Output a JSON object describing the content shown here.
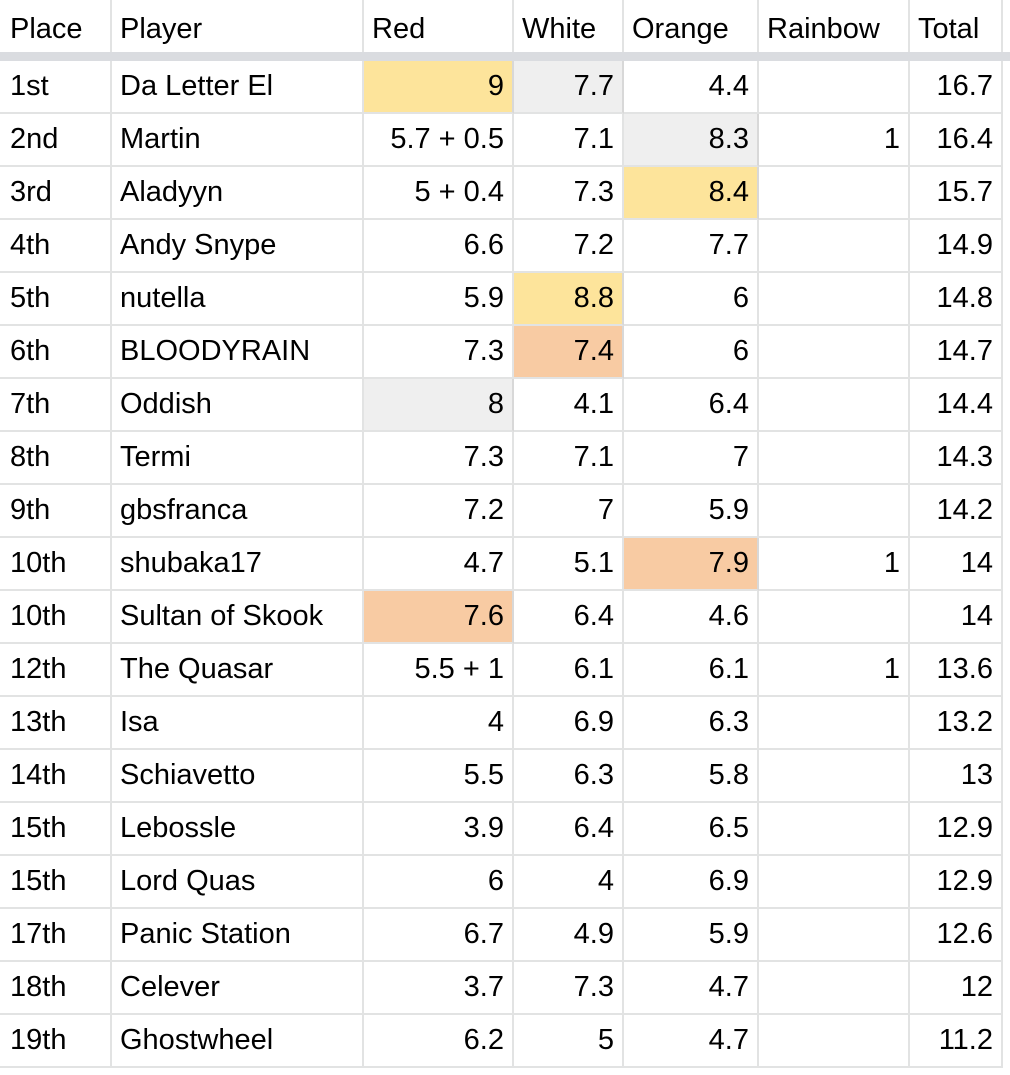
{
  "headers": {
    "place": "Place",
    "player": "Player",
    "red": "Red",
    "white": "White",
    "orange": "Orange",
    "rainbow": "Rainbow",
    "total": "Total"
  },
  "highlight_colors": {
    "gold": "#fde49b",
    "silver": "#efefef",
    "bronze": "#f8cba3"
  },
  "rows": [
    {
      "place": "1st",
      "player": "Da Letter El",
      "red": "9",
      "white": "7.7",
      "orange": "4.4",
      "rainbow": "",
      "total": "16.7"
    },
    {
      "place": "2nd",
      "player": "Martin",
      "red": "5.7 + 0.5",
      "white": "7.1",
      "orange": "8.3",
      "rainbow": "1",
      "total": "16.4"
    },
    {
      "place": "3rd",
      "player": "Aladyyn",
      "red": "5 + 0.4",
      "white": "7.3",
      "orange": "8.4",
      "rainbow": "",
      "total": "15.7"
    },
    {
      "place": "4th",
      "player": "Andy Snype",
      "red": "6.6",
      "white": "7.2",
      "orange": "7.7",
      "rainbow": "",
      "total": "14.9"
    },
    {
      "place": "5th",
      "player": "nutella",
      "red": "5.9",
      "white": "8.8",
      "orange": "6",
      "rainbow": "",
      "total": "14.8"
    },
    {
      "place": "6th",
      "player": "BLOODYRAIN",
      "red": "7.3",
      "white": "7.4",
      "orange": "6",
      "rainbow": "",
      "total": "14.7"
    },
    {
      "place": "7th",
      "player": "Oddish",
      "red": "8",
      "white": "4.1",
      "orange": "6.4",
      "rainbow": "",
      "total": "14.4"
    },
    {
      "place": "8th",
      "player": "Termi",
      "red": "7.3",
      "white": "7.1",
      "orange": "7",
      "rainbow": "",
      "total": "14.3"
    },
    {
      "place": "9th",
      "player": "gbsfranca",
      "red": "7.2",
      "white": "7",
      "orange": "5.9",
      "rainbow": "",
      "total": "14.2"
    },
    {
      "place": "10th",
      "player": "shubaka17",
      "red": "4.7",
      "white": "5.1",
      "orange": "7.9",
      "rainbow": "1",
      "total": "14"
    },
    {
      "place": "10th",
      "player": "Sultan of Skook",
      "red": "7.6",
      "white": "6.4",
      "orange": "4.6",
      "rainbow": "",
      "total": "14"
    },
    {
      "place": "12th",
      "player": "The Quasar",
      "red": "5.5 + 1",
      "white": "6.1",
      "orange": "6.1",
      "rainbow": "1",
      "total": "13.6"
    },
    {
      "place": "13th",
      "player": "Isa",
      "red": "4",
      "white": "6.9",
      "orange": "6.3",
      "rainbow": "",
      "total": "13.2"
    },
    {
      "place": "14th",
      "player": "Schiavetto",
      "red": "5.5",
      "white": "6.3",
      "orange": "5.8",
      "rainbow": "",
      "total": "13"
    },
    {
      "place": "15th",
      "player": "Lebossle",
      "red": "3.9",
      "white": "6.4",
      "orange": "6.5",
      "rainbow": "",
      "total": "12.9"
    },
    {
      "place": "15th",
      "player": "Lord Quas",
      "red": "6",
      "white": "4",
      "orange": "6.9",
      "rainbow": "",
      "total": "12.9"
    },
    {
      "place": "17th",
      "player": "Panic Station",
      "red": "6.7",
      "white": "4.9",
      "orange": "5.9",
      "rainbow": "",
      "total": "12.6"
    },
    {
      "place": "18th",
      "player": "Celever",
      "red": "3.7",
      "white": "7.3",
      "orange": "4.7",
      "rainbow": "",
      "total": "12"
    },
    {
      "place": "19th",
      "player": "Ghostwheel",
      "red": "6.2",
      "white": "5",
      "orange": "4.7",
      "rainbow": "",
      "total": "11.2"
    }
  ]
}
